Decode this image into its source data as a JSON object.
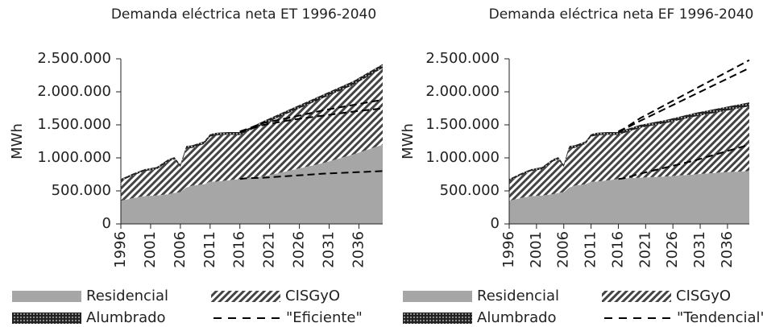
{
  "chart_data": [
    {
      "type": "stacked_area",
      "title": "Demanda eléctrica neta ET 1996-2040",
      "y_label": "MWh",
      "x": [
        1996,
        1998,
        2000,
        2002,
        2004,
        2005,
        2006,
        2007,
        2008,
        2010,
        2011,
        2012,
        2014,
        2016,
        2017,
        2020,
        2025,
        2030,
        2035,
        2040
      ],
      "xlim": [
        1996,
        2040
      ],
      "xticks": [
        1996,
        2001,
        2006,
        2011,
        2016,
        2021,
        2026,
        2031,
        2036
      ],
      "ylim": [
        0,
        2500000
      ],
      "yticks": [
        0,
        {
          "value": 500000,
          "label": "500.000"
        },
        {
          "value": 1000000,
          "label": "1.000.000"
        },
        {
          "value": 1500000,
          "label": "1.500.000"
        },
        {
          "value": 2000000,
          "label": "2.000.000"
        },
        {
          "value": 2500000,
          "label": "2.500.000"
        }
      ],
      "series": [
        {
          "name": "Residencial",
          "color": "#a6a6a6",
          "pattern": "solid",
          "values": [
            350000,
            390000,
            420000,
            430000,
            450000,
            470000,
            480000,
            550000,
            580000,
            600000,
            640000,
            640000,
            660000,
            680000,
            690000,
            720000,
            820000,
            920000,
            1050000,
            1200000
          ]
        },
        {
          "name": "CISGyO",
          "color": "#555555",
          "pattern": "hatch",
          "values": [
            300000,
            340000,
            380000,
            395000,
            495000,
            505000,
            385000,
            590000,
            570000,
            610000,
            680000,
            700000,
            690000,
            665000,
            695000,
            795000,
            890000,
            985000,
            1050000,
            1160000
          ]
        },
        {
          "name": "Alumbrado",
          "color": "#222222",
          "pattern": "dots",
          "values": [
            30000,
            30000,
            30000,
            35000,
            35000,
            35000,
            35000,
            40000,
            40000,
            40000,
            40000,
            40000,
            40000,
            45000,
            45000,
            45000,
            50000,
            55000,
            60000,
            60000
          ]
        }
      ],
      "dashed": {
        "name": "\"Eficiente\"",
        "color": "#000000",
        "values": [
          [
            null,
            null,
            null,
            null,
            null,
            null,
            null,
            null,
            null,
            null,
            null,
            null,
            null,
            680000,
            690000,
            700000,
            730000,
            760000,
            780000,
            800000
          ],
          [
            null,
            null,
            null,
            null,
            null,
            null,
            null,
            null,
            null,
            null,
            null,
            null,
            null,
            1390000,
            1420000,
            1500000,
            1580000,
            1640000,
            1700000,
            1750000
          ],
          [
            null,
            null,
            null,
            null,
            null,
            null,
            null,
            null,
            null,
            null,
            null,
            null,
            null,
            1400000,
            1430000,
            1530000,
            1620000,
            1720000,
            1800000,
            1880000
          ]
        ]
      }
    },
    {
      "type": "stacked_area",
      "title": "Demanda eléctrica neta EF 1996-2040",
      "y_label": "MWh",
      "x": [
        1996,
        1998,
        2000,
        2002,
        2004,
        2005,
        2006,
        2007,
        2008,
        2010,
        2011,
        2012,
        2014,
        2016,
        2017,
        2020,
        2025,
        2030,
        2035,
        2040
      ],
      "xlim": [
        1996,
        2040
      ],
      "xticks": [
        1996,
        2001,
        2006,
        2011,
        2016,
        2021,
        2026,
        2031,
        2036
      ],
      "ylim": [
        0,
        2500000
      ],
      "yticks": [
        0,
        {
          "value": 500000,
          "label": "500.000"
        },
        {
          "value": 1000000,
          "label": "1.000.000"
        },
        {
          "value": 1500000,
          "label": "1.500.000"
        },
        {
          "value": 2000000,
          "label": "2.000.000"
        },
        {
          "value": 2500000,
          "label": "2.500.000"
        }
      ],
      "series": [
        {
          "name": "Residencial",
          "color": "#a6a6a6",
          "pattern": "solid",
          "values": [
            350000,
            390000,
            420000,
            430000,
            450000,
            470000,
            480000,
            550000,
            580000,
            600000,
            640000,
            640000,
            660000,
            680000,
            690000,
            700000,
            720000,
            750000,
            780000,
            800000
          ]
        },
        {
          "name": "CISGyO",
          "color": "#555555",
          "pattern": "hatch",
          "values": [
            300000,
            340000,
            380000,
            395000,
            495000,
            505000,
            385000,
            590000,
            570000,
            610000,
            680000,
            700000,
            690000,
            665000,
            685000,
            755000,
            810000,
            875000,
            920000,
            980000
          ]
        },
        {
          "name": "Alumbrado",
          "color": "#222222",
          "pattern": "dots",
          "values": [
            30000,
            30000,
            30000,
            35000,
            35000,
            35000,
            35000,
            40000,
            40000,
            40000,
            40000,
            40000,
            40000,
            45000,
            45000,
            45000,
            50000,
            55000,
            60000,
            60000
          ]
        }
      ],
      "dashed": {
        "name": "\"Tendencial\"",
        "color": "#000000",
        "values": [
          [
            null,
            null,
            null,
            null,
            null,
            null,
            null,
            null,
            null,
            null,
            null,
            null,
            null,
            680000,
            690000,
            760000,
            860000,
            960000,
            1080000,
            1200000
          ],
          [
            null,
            null,
            null,
            null,
            null,
            null,
            null,
            null,
            null,
            null,
            null,
            null,
            null,
            1390000,
            1430000,
            1560000,
            1760000,
            1960000,
            2160000,
            2360000
          ],
          [
            null,
            null,
            null,
            null,
            null,
            null,
            null,
            null,
            null,
            null,
            null,
            null,
            null,
            1400000,
            1440000,
            1600000,
            1820000,
            2040000,
            2260000,
            2480000
          ]
        ]
      }
    }
  ]
}
